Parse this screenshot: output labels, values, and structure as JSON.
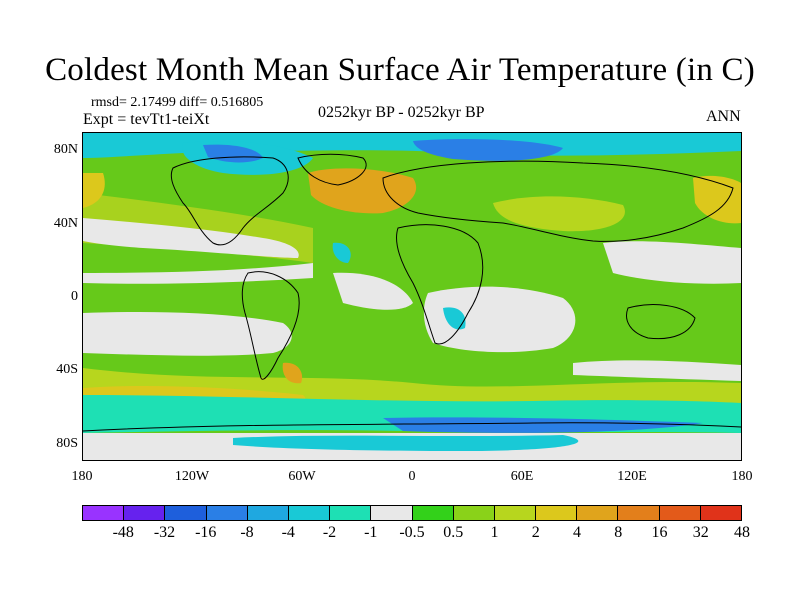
{
  "title": "Coldest Month Mean Surface Air Temperature (in C)",
  "stats": "rmsd= 2.17499 diff= 0.516805",
  "expt": "Expt = tevTt1-teiXt",
  "period": "0252kyr BP - 0252kyr BP",
  "season": "ANN",
  "axes": {
    "lat_labels": [
      "80N",
      "40N",
      "0",
      "40S",
      "80S"
    ],
    "lon_labels": [
      "180",
      "120W",
      "60W",
      "0",
      "60E",
      "120E",
      "180"
    ]
  },
  "colorbar": {
    "colors": [
      "#9933ff",
      "#6622ee",
      "#1e5fdc",
      "#2a7fe6",
      "#1fa8e0",
      "#19c9d6",
      "#1ee0b4",
      "#e8e8e8",
      "#33d11a",
      "#8ad219",
      "#b7d61e",
      "#dcc81c",
      "#e0a41c",
      "#e37f1b",
      "#e35a1a",
      "#e0331a"
    ],
    "labels": [
      "-48",
      "-32",
      "-16",
      "-8",
      "-4",
      "-2",
      "-1",
      "-0.5",
      "0.5",
      "1",
      "2",
      "4",
      "8",
      "16",
      "32",
      "48"
    ]
  },
  "legend_colors": {
    "near_zero": "#e8e8e8",
    "warm_small": "#8ad219",
    "warm_mid": "#dcc81c",
    "warm_high": "#e0a41c",
    "cool_small": "#19c9d6",
    "cool_mid": "#2a7fe6"
  }
}
